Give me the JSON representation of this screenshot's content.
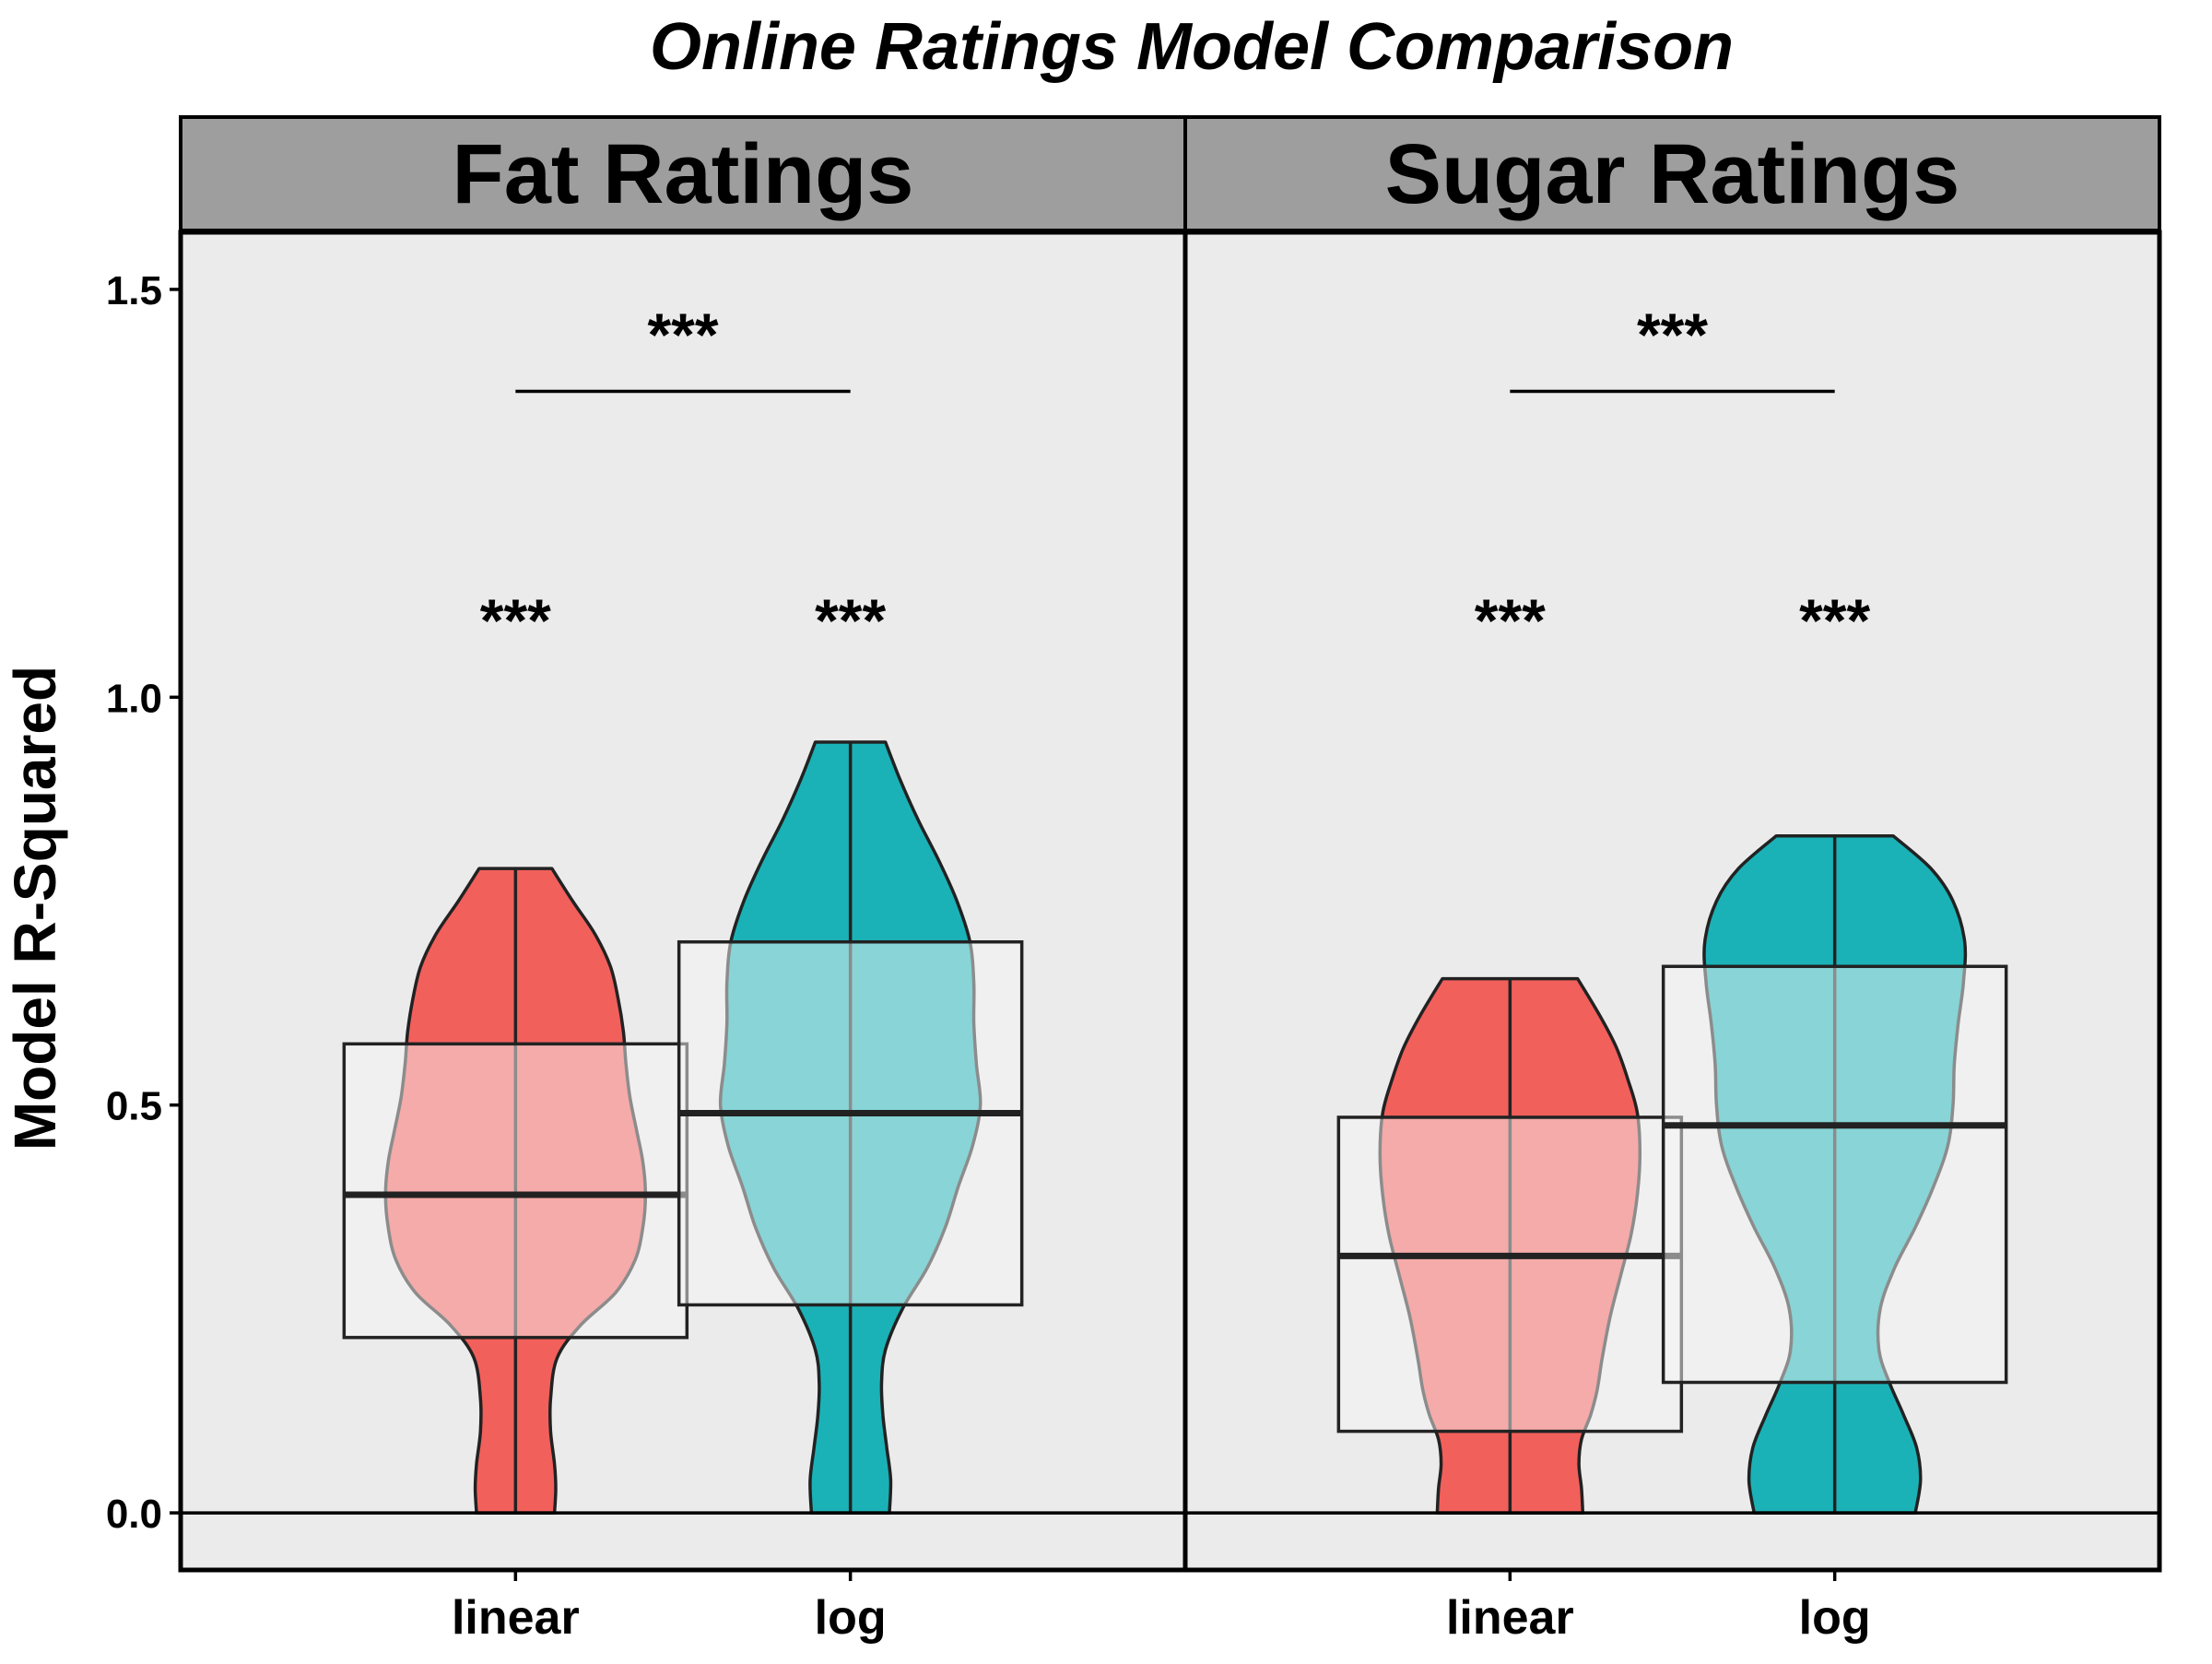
{
  "title": "Online Ratings Model Comparison",
  "ylabel": "Model R-Squared",
  "colors": {
    "linear": "#F2605C",
    "log": "#1AB2B7",
    "panel_bg": "#EBEBEB",
    "strip_bg": "#9E9E9E",
    "box_fill": "#F5F5F5"
  },
  "chart_data": {
    "type": "violin",
    "title": "Online Ratings Model Comparison",
    "ylabel": "Model R-Squared",
    "xlabel": "",
    "ylim": [
      -0.07,
      1.57
    ],
    "yticks": [
      {
        "value": 0.0,
        "label": "0.0"
      },
      {
        "value": 0.5,
        "label": "0.5"
      },
      {
        "value": 1.0,
        "label": "1.0"
      },
      {
        "value": 1.5,
        "label": "1.5"
      }
    ],
    "reference_line": 0,
    "grid": false,
    "legend": "none",
    "facets": [
      {
        "name": "Fat Ratings",
        "bracket": {
          "from": "linear",
          "to": "log",
          "y": 1.375,
          "label": "***",
          "label_y": 1.45
        },
        "groups": [
          {
            "category": "linear",
            "color_key": "linear",
            "min": 0.0,
            "max": 0.79,
            "q1": 0.215,
            "median": 0.39,
            "q3": 0.575,
            "annotation": "***",
            "annotation_y": 1.1,
            "density": [
              [
                0.0,
                0.3
              ],
              [
                0.03,
                0.31
              ],
              [
                0.06,
                0.3
              ],
              [
                0.1,
                0.27
              ],
              [
                0.14,
                0.27
              ],
              [
                0.19,
                0.32
              ],
              [
                0.23,
                0.5
              ],
              [
                0.27,
                0.77
              ],
              [
                0.31,
                0.92
              ],
              [
                0.35,
                0.98
              ],
              [
                0.39,
                1.0
              ],
              [
                0.43,
                0.98
              ],
              [
                0.47,
                0.93
              ],
              [
                0.51,
                0.88
              ],
              [
                0.55,
                0.85
              ],
              [
                0.59,
                0.83
              ],
              [
                0.63,
                0.79
              ],
              [
                0.67,
                0.73
              ],
              [
                0.71,
                0.61
              ],
              [
                0.75,
                0.44
              ],
              [
                0.79,
                0.28
              ]
            ]
          },
          {
            "category": "log",
            "color_key": "log",
            "min": 0.0,
            "max": 0.945,
            "q1": 0.255,
            "median": 0.49,
            "q3": 0.7,
            "annotation": "***",
            "annotation_y": 1.1,
            "density": [
              [
                0.0,
                0.3
              ],
              [
                0.04,
                0.31
              ],
              [
                0.08,
                0.28
              ],
              [
                0.12,
                0.25
              ],
              [
                0.16,
                0.24
              ],
              [
                0.2,
                0.27
              ],
              [
                0.25,
                0.4
              ],
              [
                0.3,
                0.59
              ],
              [
                0.35,
                0.73
              ],
              [
                0.4,
                0.83
              ],
              [
                0.45,
                0.94
              ],
              [
                0.5,
                1.0
              ],
              [
                0.55,
                0.97
              ],
              [
                0.6,
                0.95
              ],
              [
                0.65,
                0.95
              ],
              [
                0.7,
                0.92
              ],
              [
                0.75,
                0.82
              ],
              [
                0.8,
                0.68
              ],
              [
                0.85,
                0.52
              ],
              [
                0.9,
                0.38
              ],
              [
                0.945,
                0.27
              ]
            ]
          }
        ]
      },
      {
        "name": "Sugar Ratings",
        "bracket": {
          "from": "linear",
          "to": "log",
          "y": 1.375,
          "label": "***",
          "label_y": 1.45
        },
        "groups": [
          {
            "category": "linear",
            "color_key": "linear",
            "min": 0.0,
            "max": 0.655,
            "q1": 0.1,
            "median": 0.315,
            "q3": 0.485,
            "annotation": "***",
            "annotation_y": 1.1,
            "density": [
              [
                0.0,
                0.56
              ],
              [
                0.03,
                0.55
              ],
              [
                0.06,
                0.53
              ],
              [
                0.09,
                0.55
              ],
              [
                0.12,
                0.62
              ],
              [
                0.15,
                0.67
              ],
              [
                0.19,
                0.71
              ],
              [
                0.24,
                0.77
              ],
              [
                0.29,
                0.85
              ],
              [
                0.34,
                0.93
              ],
              [
                0.39,
                0.98
              ],
              [
                0.44,
                1.0
              ],
              [
                0.49,
                0.98
              ],
              [
                0.53,
                0.91
              ],
              [
                0.57,
                0.82
              ],
              [
                0.61,
                0.69
              ],
              [
                0.655,
                0.52
              ]
            ]
          },
          {
            "category": "log",
            "color_key": "log",
            "min": 0.0,
            "max": 0.83,
            "q1": 0.16,
            "median": 0.475,
            "q3": 0.67,
            "annotation": "***",
            "annotation_y": 1.1,
            "density": [
              [
                0.0,
                0.62
              ],
              [
                0.04,
                0.66
              ],
              [
                0.08,
                0.63
              ],
              [
                0.12,
                0.53
              ],
              [
                0.16,
                0.42
              ],
              [
                0.2,
                0.34
              ],
              [
                0.25,
                0.35
              ],
              [
                0.3,
                0.46
              ],
              [
                0.35,
                0.62
              ],
              [
                0.4,
                0.76
              ],
              [
                0.45,
                0.87
              ],
              [
                0.5,
                0.91
              ],
              [
                0.55,
                0.92
              ],
              [
                0.6,
                0.95
              ],
              [
                0.65,
                0.99
              ],
              [
                0.7,
                1.0
              ],
              [
                0.75,
                0.91
              ],
              [
                0.79,
                0.74
              ],
              [
                0.83,
                0.45
              ]
            ]
          }
        ]
      }
    ]
  }
}
